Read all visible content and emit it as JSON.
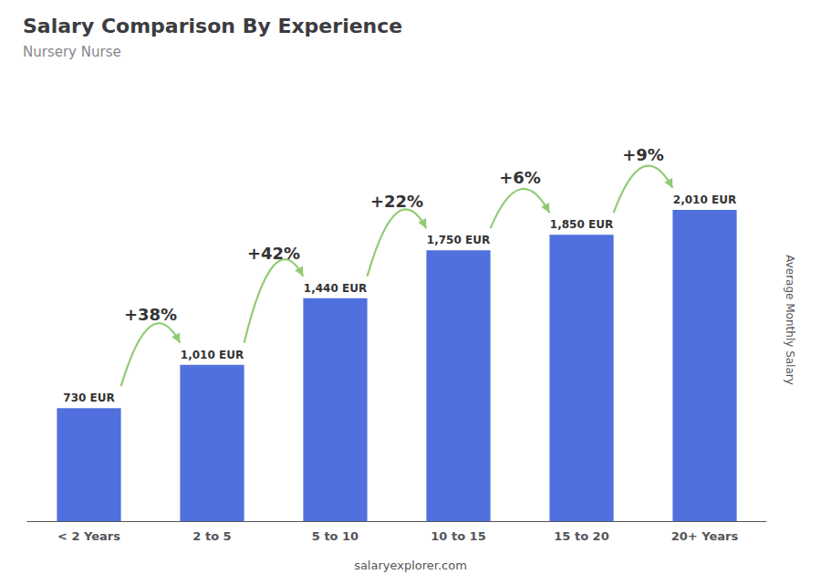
{
  "chart_data": {
    "type": "bar",
    "title": "Salary Comparison By Experience",
    "subtitle": "Nursery Nurse",
    "ylabel": "Average Monthly Salary",
    "categories": [
      "< 2 Years",
      "2 to 5",
      "5 to 10",
      "10 to 15",
      "15 to 20",
      "20+ Years"
    ],
    "values": [
      730,
      1010,
      1440,
      1750,
      1850,
      2010
    ],
    "value_labels": [
      "730 EUR",
      "1,010 EUR",
      "1,440 EUR",
      "1,750 EUR",
      "1,850 EUR",
      "2,010 EUR"
    ],
    "data_labels": true,
    "annotations": [
      "+38%",
      "+42%",
      "+22%",
      "+6%",
      "+9%"
    ],
    "footer": "salaryexplorer.com",
    "ylim": [
      0,
      2600
    ],
    "grid": false,
    "tick_labels": "x"
  }
}
